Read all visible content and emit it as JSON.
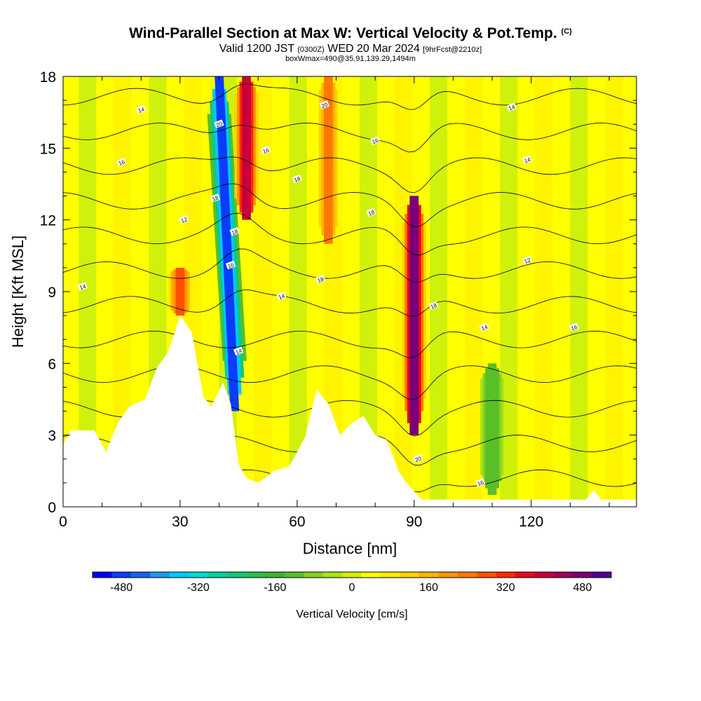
{
  "chart_data": {
    "type": "heatmap",
    "title": "Wind-Parallel Section at Max W: Vertical Velocity & Pot.Temp.",
    "title_suffix": "(C)",
    "subtitle_a": "Valid 1200 JST",
    "subtitle_b": "(0300Z)",
    "subtitle_c": "WED 20 Mar 2024",
    "subtitle_d": "[9hrFcst@2210z]",
    "subtitle2": "boxWmax=490@35.91,139.29,1494m",
    "xlabel": "Distance [nm]",
    "ylabel": "Height [Kft MSL]",
    "xlim": [
      0,
      147
    ],
    "ylim": [
      0,
      18
    ],
    "xticks": [
      0,
      30,
      60,
      90,
      120
    ],
    "yticks": [
      0,
      3,
      6,
      9,
      12,
      15,
      18
    ],
    "grid": false,
    "colorbar": {
      "label": "Vertical Velocity [cm/s]",
      "min": -540,
      "max": 540,
      "step": 40,
      "tick_values": [
        -480,
        -320,
        -160,
        0,
        160,
        320,
        480
      ],
      "tick_labels": [
        "-480",
        "-320",
        "-160",
        "0",
        "160",
        "320",
        "480"
      ],
      "colors": [
        "#0000ff",
        "#0a3cfa",
        "#1464f5",
        "#1e96f0",
        "#00c8ff",
        "#00dcd2",
        "#00d2a0",
        "#14c878",
        "#28be50",
        "#3cb432",
        "#5abe28",
        "#82d21e",
        "#aae614",
        "#d2f000",
        "#ffff00",
        "#ffeb00",
        "#ffd200",
        "#ffb400",
        "#ff9600",
        "#ff7800",
        "#ff5000",
        "#ff2800",
        "#e60a1e",
        "#c8003c",
        "#a0005a",
        "#780078",
        "#500096"
      ]
    },
    "vertical_velocity_features": [
      {
        "x": 30,
        "y_bottom": 8,
        "y_top": 10,
        "w": 280
      },
      {
        "x": 44,
        "y_bottom": 4,
        "y_top": 18,
        "w": -480
      },
      {
        "x": 47,
        "y_bottom": 12,
        "y_top": 18,
        "w": 400
      },
      {
        "x": 68,
        "y_bottom": 11,
        "y_top": 18,
        "w": 220
      },
      {
        "x": 90,
        "y_bottom": 3,
        "y_top": 13,
        "w": 490
      },
      {
        "x": 110,
        "y_bottom": 0.5,
        "y_top": 6,
        "w": -140
      }
    ],
    "theta_contour_labels": [
      "18",
      "16",
      "14",
      "12",
      "20",
      "18",
      "16",
      "14",
      "16",
      "18",
      "20",
      "18",
      "16",
      "18",
      "20",
      "16",
      "14",
      "14",
      "14",
      "12",
      "16",
      "14",
      "18",
      "14",
      "18"
    ],
    "terrain": [
      {
        "x": 0,
        "h": 2.6
      },
      {
        "x": 2,
        "h": 3.2
      },
      {
        "x": 8,
        "h": 3.2
      },
      {
        "x": 11,
        "h": 2.3
      },
      {
        "x": 14,
        "h": 3.5
      },
      {
        "x": 17,
        "h": 4.2
      },
      {
        "x": 21,
        "h": 4.5
      },
      {
        "x": 24,
        "h": 5.8
      },
      {
        "x": 27,
        "h": 6.5
      },
      {
        "x": 30,
        "h": 8.0
      },
      {
        "x": 33,
        "h": 7.3
      },
      {
        "x": 36,
        "h": 4.6
      },
      {
        "x": 38,
        "h": 4.2
      },
      {
        "x": 41,
        "h": 5.2
      },
      {
        "x": 43,
        "h": 4.3
      },
      {
        "x": 45,
        "h": 1.8
      },
      {
        "x": 47,
        "h": 1.2
      },
      {
        "x": 50,
        "h": 1.0
      },
      {
        "x": 54,
        "h": 1.5
      },
      {
        "x": 58,
        "h": 1.7
      },
      {
        "x": 62,
        "h": 2.9
      },
      {
        "x": 65,
        "h": 4.9
      },
      {
        "x": 68,
        "h": 4.3
      },
      {
        "x": 71,
        "h": 3.0
      },
      {
        "x": 74,
        "h": 3.5
      },
      {
        "x": 77,
        "h": 3.8
      },
      {
        "x": 80,
        "h": 3.0
      },
      {
        "x": 83,
        "h": 2.8
      },
      {
        "x": 86,
        "h": 1.5
      },
      {
        "x": 88,
        "h": 1.0
      },
      {
        "x": 92,
        "h": 0.3
      },
      {
        "x": 134,
        "h": 0.3
      },
      {
        "x": 136,
        "h": 0.7
      },
      {
        "x": 138,
        "h": 0.3
      },
      {
        "x": 147,
        "h": 0.3
      }
    ]
  }
}
